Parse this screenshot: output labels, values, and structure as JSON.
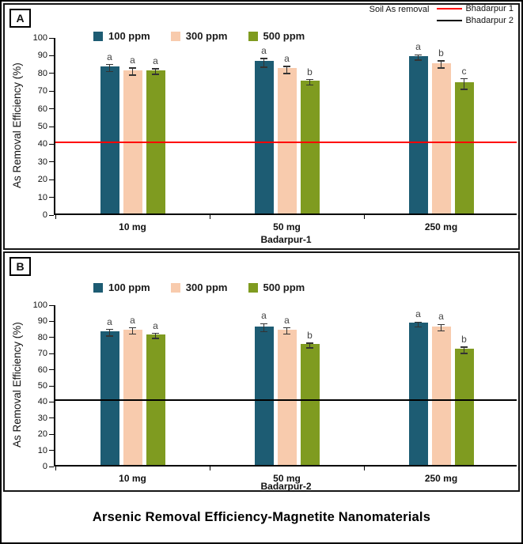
{
  "figure": {
    "bottom_title": "Arsenic Removal Efficiency-Magnetite Nanomaterials"
  },
  "panels": [
    {
      "label": "A"
    },
    {
      "label": "B"
    }
  ],
  "top_legend": {
    "title": "Soil As removal",
    "items": [
      {
        "label": "Bhadarpur 1",
        "color": "#ff0000"
      },
      {
        "label": "Bhadarpur 2",
        "color": "#000000"
      }
    ]
  },
  "chart_data": [
    {
      "type": "bar",
      "panel": "A",
      "title": "",
      "xlabel": "Badarpur-1",
      "ylabel": "As Removal Efficiency (%)",
      "ylim": [
        0,
        100
      ],
      "ytick_step": 10,
      "grid": false,
      "legend_position": "top",
      "categories": [
        "10 mg",
        "50 mg",
        "250 mg"
      ],
      "series": [
        {
          "name": "100 ppm",
          "color": "#1d5c73",
          "values": [
            83,
            86,
            89
          ],
          "errors": [
            2,
            2.5,
            1.5
          ],
          "letters": [
            "a",
            "a",
            "a"
          ]
        },
        {
          "name": "300 ppm",
          "color": "#f8cbad",
          "values": [
            81,
            82,
            85
          ],
          "errors": [
            2,
            2,
            2
          ],
          "letters": [
            "a",
            "a",
            "b"
          ]
        },
        {
          "name": "500 ppm",
          "color": "#7f9b20",
          "values": [
            81,
            75,
            74
          ],
          "errors": [
            1.5,
            1.5,
            3
          ],
          "letters": [
            "a",
            "b",
            "c"
          ]
        }
      ],
      "reference_line": {
        "label": "Bhadarpur 1",
        "value": 41,
        "color": "#ff0000"
      }
    },
    {
      "type": "bar",
      "panel": "B",
      "title": "",
      "xlabel": "Badarpur-2",
      "ylabel": "As Removal Efficiency (%)",
      "ylim": [
        0,
        100
      ],
      "ytick_step": 10,
      "grid": false,
      "legend_position": "top",
      "categories": [
        "10 mg",
        "50 mg",
        "250 mg"
      ],
      "series": [
        {
          "name": "100 ppm",
          "color": "#1d5c73",
          "values": [
            83,
            86,
            88
          ],
          "errors": [
            2,
            2.5,
            1.5
          ],
          "letters": [
            "a",
            "a",
            "a"
          ]
        },
        {
          "name": "300 ppm",
          "color": "#f8cbad",
          "values": [
            84,
            84,
            86
          ],
          "errors": [
            2,
            2,
            2
          ],
          "letters": [
            "a",
            "a",
            "a"
          ]
        },
        {
          "name": "500 ppm",
          "color": "#7f9b20",
          "values": [
            81,
            75,
            72
          ],
          "errors": [
            1.5,
            1.5,
            2
          ],
          "letters": [
            "a",
            "b",
            "b"
          ]
        }
      ],
      "reference_line": {
        "label": "Bhadarpur 2",
        "value": 41,
        "color": "#000000"
      }
    }
  ]
}
